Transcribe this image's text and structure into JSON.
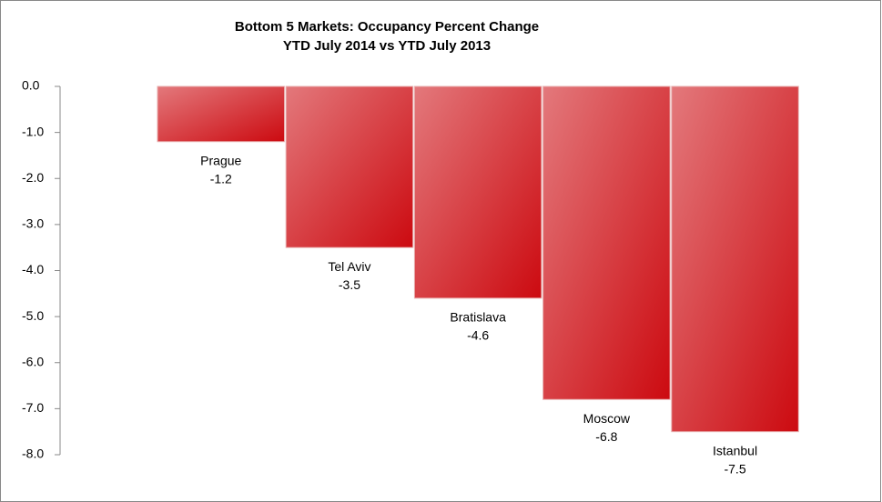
{
  "chart_data": {
    "type": "bar",
    "title": "Bottom 5 Markets: Occupancy Percent Change",
    "subtitle": "YTD July 2014 vs YTD July 2013",
    "categories": [
      "Prague",
      "Tel Aviv",
      "Bratislava",
      "Moscow",
      "Istanbul"
    ],
    "values": [
      -1.2,
      -3.5,
      -4.6,
      -6.8,
      -7.5
    ],
    "color": "#cc0a10",
    "ylim": [
      -8,
      0
    ],
    "yticks": [
      {
        "value": 0,
        "label": "0.0"
      },
      {
        "value": -1,
        "label": "-1.0"
      },
      {
        "value": -2,
        "label": "-2.0"
      },
      {
        "value": -3,
        "label": "-3.0"
      },
      {
        "value": -4,
        "label": "-4.0"
      },
      {
        "value": -5,
        "label": "-5.0"
      },
      {
        "value": -6,
        "label": "-6.0"
      },
      {
        "value": -7,
        "label": "-7.0"
      },
      {
        "value": -8,
        "label": "-8.0"
      }
    ]
  }
}
